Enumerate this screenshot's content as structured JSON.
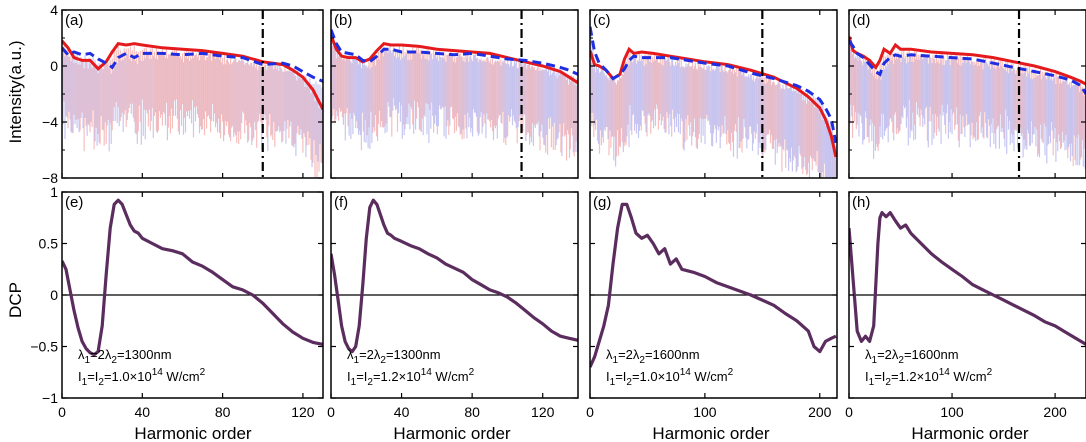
{
  "figure": {
    "ylabel_top": "Intensity(a.u.)",
    "ylabel_bottom": "DCP",
    "xlabel": "Harmonic order"
  },
  "chart_data": [
    {
      "panel": "(a)",
      "type": "line",
      "xlim": [
        0,
        130
      ],
      "ylim": [
        -8,
        4
      ],
      "yticks": [
        "−8",
        "−4",
        "0",
        "4"
      ],
      "yticks_values": [
        -8,
        -4,
        0,
        4
      ],
      "cutoff_x": 100,
      "colors": {
        "red": "#e41a1c",
        "blue": "#1f2ee0",
        "red_light": "#f6b3b3",
        "blue_light": "#bcbcf0",
        "cutoff": "#000000"
      },
      "series": [
        {
          "x": [
            0,
            3,
            6,
            10,
            14,
            18,
            22,
            25,
            28,
            32,
            36,
            40,
            50,
            60,
            70,
            80,
            90,
            100,
            110,
            115,
            120,
            125,
            130
          ],
          "y": [
            1.8,
            1.3,
            0.6,
            0.4,
            0.4,
            -0.2,
            0.3,
            1.0,
            1.6,
            1.5,
            1.6,
            1.5,
            1.3,
            1.2,
            1.1,
            0.9,
            0.7,
            0.3,
            0.1,
            -0.3,
            -0.8,
            -1.7,
            -3.1
          ]
        },
        {
          "x": [
            0,
            3,
            6,
            10,
            14,
            18,
            22,
            25,
            28,
            32,
            36,
            40,
            50,
            60,
            70,
            80,
            90,
            100,
            110,
            115,
            120,
            125,
            130
          ],
          "y": [
            1.3,
            0.8,
            1.0,
            0.8,
            0.9,
            0.5,
            0.2,
            -0.1,
            0.6,
            0.9,
            0.6,
            0.9,
            0.9,
            0.8,
            0.9,
            0.7,
            0.6,
            0.1,
            0.2,
            0.0,
            -0.4,
            -0.8,
            -1.1
          ]
        }
      ]
    },
    {
      "panel": "(b)",
      "type": "line",
      "xlim": [
        0,
        140
      ],
      "ylim": [
        -8,
        4
      ],
      "cutoff_x": 108,
      "colors": {
        "red": "#e41a1c",
        "blue": "#1f2ee0",
        "red_light": "#f6b3b3",
        "blue_light": "#bcbcf0",
        "cutoff": "#000000"
      },
      "series": [
        {
          "x": [
            0,
            3,
            6,
            10,
            14,
            18,
            22,
            26,
            30,
            34,
            40,
            50,
            60,
            70,
            80,
            90,
            100,
            110,
            120,
            130,
            135,
            140
          ],
          "y": [
            2.2,
            1.2,
            0.7,
            0.6,
            0.6,
            0.3,
            0.5,
            1.1,
            1.6,
            1.5,
            1.5,
            1.4,
            1.2,
            1.1,
            1.0,
            0.9,
            0.6,
            0.3,
            0.0,
            -0.4,
            -0.8,
            -1.2
          ]
        },
        {
          "x": [
            0,
            3,
            6,
            10,
            14,
            18,
            22,
            26,
            30,
            34,
            40,
            50,
            60,
            70,
            80,
            90,
            100,
            110,
            120,
            130,
            135,
            140
          ],
          "y": [
            2.6,
            1.6,
            1.0,
            0.9,
            0.8,
            0.4,
            0.3,
            0.7,
            1.2,
            1.2,
            1.0,
            1.0,
            0.9,
            0.8,
            0.9,
            0.7,
            0.5,
            0.4,
            0.2,
            -0.1,
            -0.3,
            -0.6
          ]
        }
      ]
    },
    {
      "panel": "(c)",
      "type": "line",
      "xlim": [
        0,
        215
      ],
      "ylim": [
        -8,
        4
      ],
      "cutoff_x": 150,
      "colors": {
        "red": "#e41a1c",
        "blue": "#1f2ee0",
        "red_light": "#f6b3b3",
        "blue_light": "#bcbcf0",
        "cutoff": "#000000"
      },
      "series": [
        {
          "x": [
            0,
            4,
            8,
            14,
            20,
            26,
            30,
            34,
            38,
            45,
            55,
            70,
            85,
            100,
            120,
            140,
            160,
            180,
            190,
            200,
            205,
            210,
            214
          ],
          "y": [
            1.1,
            0.1,
            0.0,
            -0.3,
            -0.9,
            -0.6,
            0.5,
            1.2,
            0.9,
            1.0,
            0.9,
            0.7,
            0.5,
            0.3,
            0.1,
            -0.3,
            -0.8,
            -1.6,
            -2.2,
            -3.0,
            -3.8,
            -5.0,
            -6.5
          ]
        },
        {
          "x": [
            0,
            4,
            8,
            14,
            20,
            26,
            30,
            34,
            38,
            45,
            55,
            70,
            85,
            100,
            120,
            140,
            160,
            180,
            190,
            200,
            205,
            210,
            214
          ],
          "y": [
            2.8,
            1.0,
            0.2,
            -0.3,
            -0.9,
            -0.6,
            -0.2,
            0.4,
            0.7,
            0.6,
            0.6,
            0.6,
            0.4,
            0.2,
            0.0,
            -0.5,
            -0.9,
            -1.4,
            -1.8,
            -2.4,
            -3.0,
            -3.8,
            -5.5
          ]
        }
      ]
    },
    {
      "panel": "(d)",
      "type": "line",
      "xlim": [
        0,
        230
      ],
      "ylim": [
        -8,
        4
      ],
      "cutoff_x": 165,
      "colors": {
        "red": "#e41a1c",
        "blue": "#1f2ee0",
        "red_light": "#f6b3b3",
        "blue_light": "#bcbcf0",
        "cutoff": "#000000"
      },
      "series": [
        {
          "x": [
            0,
            4,
            8,
            14,
            20,
            26,
            30,
            34,
            40,
            45,
            50,
            60,
            80,
            100,
            120,
            140,
            160,
            180,
            200,
            215,
            225,
            230
          ],
          "y": [
            2.1,
            1.1,
            0.9,
            0.7,
            0.4,
            -0.1,
            0.4,
            1.2,
            0.9,
            1.5,
            1.2,
            1.2,
            1.0,
            0.9,
            0.8,
            0.6,
            0.3,
            0.0,
            -0.4,
            -0.8,
            -1.1,
            -1.3
          ]
        },
        {
          "x": [
            0,
            4,
            8,
            14,
            20,
            26,
            30,
            34,
            40,
            45,
            50,
            60,
            80,
            100,
            120,
            140,
            160,
            180,
            200,
            215,
            225,
            230
          ],
          "y": [
            1.8,
            1.4,
            0.9,
            0.6,
            0.1,
            -0.4,
            -0.6,
            0.2,
            0.6,
            0.8,
            0.7,
            0.8,
            0.7,
            0.6,
            0.5,
            0.2,
            -0.1,
            -0.4,
            -0.7,
            -1.0,
            -1.4,
            -2.0
          ]
        }
      ]
    },
    {
      "panel": "(e)",
      "type": "line",
      "xlim": [
        0,
        130
      ],
      "ylim": [
        -1,
        1
      ],
      "xticks": [
        "0",
        "40",
        "80",
        "120"
      ],
      "xticks_values": [
        0,
        40,
        80,
        120
      ],
      "yticks": [
        "−1",
        "−0.5",
        "0",
        "0.5",
        "1"
      ],
      "yticks_values": [
        -1,
        -0.5,
        0,
        0.5,
        1
      ],
      "annot_line1": "λ1=2λ2=1300nm",
      "annot_line2": "I1=I2=1.0×10^14 W/cm^2",
      "annot_parts": {
        "l1": "λ",
        "s1": "1",
        "m1": "=2λ",
        "s2": "2",
        "m2": "=1300nm",
        "i1": "I",
        "t1": "1",
        "j1": "=I",
        "t2": "2",
        "j2": "=1.0×10",
        "e1": "14",
        "j3": " W/cm",
        "e2": "2"
      },
      "series": [
        {
          "x": [
            0,
            2,
            4,
            6,
            8,
            10,
            12,
            14,
            16,
            18,
            20,
            22,
            24,
            26,
            28,
            30,
            32,
            34,
            36,
            38,
            40,
            45,
            50,
            55,
            60,
            65,
            70,
            75,
            80,
            85,
            90,
            95,
            100,
            105,
            110,
            115,
            120,
            125,
            130
          ],
          "y": [
            0.33,
            0.25,
            0.05,
            -0.15,
            -0.32,
            -0.45,
            -0.52,
            -0.56,
            -0.58,
            -0.55,
            -0.3,
            0.2,
            0.65,
            0.88,
            0.92,
            0.88,
            0.78,
            0.68,
            0.62,
            0.6,
            0.55,
            0.5,
            0.45,
            0.43,
            0.4,
            0.32,
            0.28,
            0.22,
            0.15,
            0.08,
            0.05,
            0.0,
            -0.08,
            -0.18,
            -0.28,
            -0.36,
            -0.42,
            -0.46,
            -0.48
          ]
        }
      ],
      "color": "#5b2c5e"
    },
    {
      "panel": "(f)",
      "type": "line",
      "xlim": [
        0,
        140
      ],
      "ylim": [
        -1,
        1
      ],
      "xticks": [
        "0",
        "40",
        "80",
        "120"
      ],
      "xticks_values": [
        0,
        40,
        80,
        120
      ],
      "annot_parts": {
        "l1": "λ",
        "s1": "1",
        "m1": "=2λ",
        "s2": "2",
        "m2": "=1300nm",
        "i1": "I",
        "t1": "1",
        "j1": "=I",
        "t2": "2",
        "j2": "=1.2×10",
        "e1": "14",
        "j3": " W/cm",
        "e2": "2"
      },
      "series": [
        {
          "x": [
            0,
            2,
            4,
            6,
            8,
            10,
            12,
            14,
            16,
            18,
            20,
            22,
            24,
            26,
            28,
            30,
            32,
            34,
            36,
            40,
            45,
            50,
            55,
            60,
            65,
            70,
            75,
            80,
            85,
            90,
            95,
            100,
            105,
            110,
            115,
            120,
            125,
            130,
            135,
            140
          ],
          "y": [
            0.4,
            0.2,
            -0.05,
            -0.3,
            -0.45,
            -0.52,
            -0.55,
            -0.5,
            -0.3,
            0.1,
            0.55,
            0.85,
            0.92,
            0.88,
            0.78,
            0.68,
            0.6,
            0.58,
            0.55,
            0.52,
            0.48,
            0.45,
            0.4,
            0.36,
            0.3,
            0.26,
            0.22,
            0.15,
            0.1,
            0.05,
            0.02,
            -0.02,
            -0.08,
            -0.15,
            -0.22,
            -0.28,
            -0.35,
            -0.4,
            -0.42,
            -0.44
          ]
        }
      ],
      "color": "#5b2c5e"
    },
    {
      "panel": "(g)",
      "type": "line",
      "xlim": [
        0,
        215
      ],
      "ylim": [
        -1,
        1
      ],
      "xticks": [
        "0",
        "100",
        "200"
      ],
      "xticks_values": [
        0,
        100,
        200
      ],
      "annot_parts": {
        "l1": "λ",
        "s1": "1",
        "m1": "=2λ",
        "s2": "2",
        "m2": "=1600nm",
        "i1": "I",
        "t1": "1",
        "j1": "=I",
        "t2": "2",
        "j2": "=1.0×10",
        "e1": "14",
        "j3": " W/cm",
        "e2": "2"
      },
      "series": [
        {
          "x": [
            0,
            4,
            8,
            12,
            16,
            20,
            24,
            28,
            32,
            36,
            40,
            45,
            50,
            55,
            60,
            65,
            70,
            75,
            80,
            90,
            100,
            110,
            120,
            130,
            140,
            150,
            160,
            170,
            180,
            190,
            195,
            200,
            205,
            210,
            214
          ],
          "y": [
            -0.7,
            -0.6,
            -0.45,
            -0.3,
            -0.1,
            0.3,
            0.65,
            0.88,
            0.88,
            0.75,
            0.6,
            0.55,
            0.58,
            0.5,
            0.4,
            0.45,
            0.3,
            0.35,
            0.25,
            0.22,
            0.18,
            0.12,
            0.08,
            0.04,
            0.0,
            -0.05,
            -0.1,
            -0.18,
            -0.25,
            -0.35,
            -0.5,
            -0.55,
            -0.45,
            -0.42,
            -0.4
          ]
        }
      ],
      "color": "#5b2c5e"
    },
    {
      "panel": "(h)",
      "type": "line",
      "xlim": [
        0,
        230
      ],
      "ylim": [
        -1,
        1
      ],
      "xticks": [
        "0",
        "100",
        "200"
      ],
      "xticks_values": [
        0,
        100,
        200
      ],
      "annot_parts": {
        "l1": "λ",
        "s1": "1",
        "m1": "=2λ",
        "s2": "2",
        "m2": "=1600nm",
        "i1": "I",
        "t1": "1",
        "j1": "=I",
        "t2": "2",
        "j2": "=1.2×10",
        "e1": "14",
        "j3": " W/cm",
        "e2": "2"
      },
      "series": [
        {
          "x": [
            0,
            4,
            8,
            12,
            16,
            20,
            24,
            28,
            30,
            32,
            36,
            40,
            45,
            50,
            55,
            60,
            70,
            80,
            90,
            100,
            110,
            120,
            130,
            140,
            150,
            160,
            170,
            180,
            190,
            200,
            210,
            220,
            230
          ],
          "y": [
            0.65,
            0.15,
            -0.35,
            -0.45,
            -0.4,
            -0.45,
            -0.3,
            0.5,
            0.75,
            0.8,
            0.76,
            0.8,
            0.72,
            0.65,
            0.68,
            0.6,
            0.5,
            0.4,
            0.32,
            0.25,
            0.18,
            0.1,
            0.05,
            0.0,
            -0.05,
            -0.1,
            -0.15,
            -0.2,
            -0.26,
            -0.3,
            -0.36,
            -0.42,
            -0.48
          ]
        }
      ],
      "color": "#5b2c5e"
    }
  ]
}
